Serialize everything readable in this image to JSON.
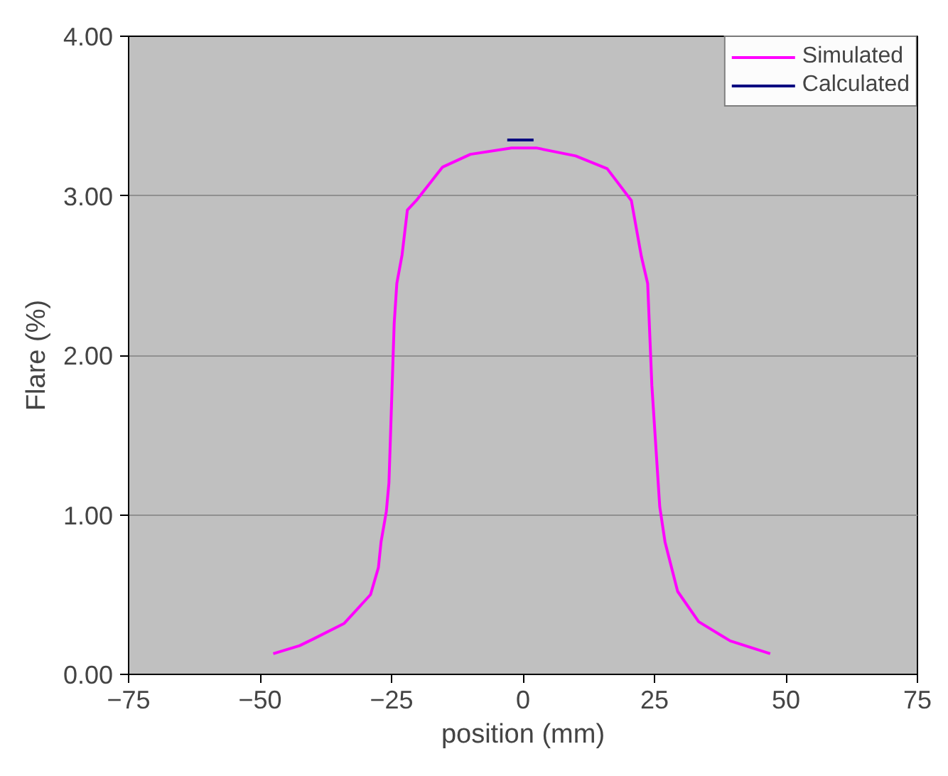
{
  "chart_data": {
    "type": "line",
    "xlabel": "position (mm)",
    "ylabel": "Flare (%)",
    "xlim": [
      -75,
      75
    ],
    "xticks": [
      -75,
      -50,
      -25,
      0,
      25,
      50,
      75
    ],
    "ylim": [
      0,
      4
    ],
    "yticks": [
      {
        "value": 0,
        "label": "0.00"
      },
      {
        "value": 1,
        "label": "1.00"
      },
      {
        "value": 2,
        "label": "2.00"
      },
      {
        "value": 3,
        "label": "3.00"
      },
      {
        "value": 4,
        "label": "4.00"
      }
    ],
    "grid": "y",
    "legend": "top right",
    "marker": "none",
    "line_style": "solid",
    "series": [
      {
        "name": "Simulated",
        "color": "#ff00ff",
        "x": [
          -47.5,
          -42.5,
          -40,
          -34,
          -29,
          -27.5,
          -27,
          -26,
          -25.5,
          -24.5,
          -24,
          -23,
          -22,
          -20.3,
          -15.3,
          -10,
          -2.2,
          2.5,
          10,
          16,
          20.6,
          22.5,
          23.7,
          24.5,
          26,
          27,
          29.4,
          33.4,
          39.4,
          47
        ],
        "values": [
          0.13,
          0.18,
          0.22,
          0.32,
          0.5,
          0.67,
          0.83,
          1.02,
          1.2,
          2.2,
          2.45,
          2.63,
          2.91,
          2.97,
          3.18,
          3.26,
          3.3,
          3.3,
          3.25,
          3.17,
          2.97,
          2.62,
          2.45,
          1.81,
          1.05,
          0.83,
          0.52,
          0.33,
          0.21,
          0.13
        ]
      },
      {
        "name": "Calculated",
        "color": "#000080",
        "x": [
          -3,
          2
        ],
        "values": [
          3.35,
          3.35
        ]
      }
    ]
  }
}
